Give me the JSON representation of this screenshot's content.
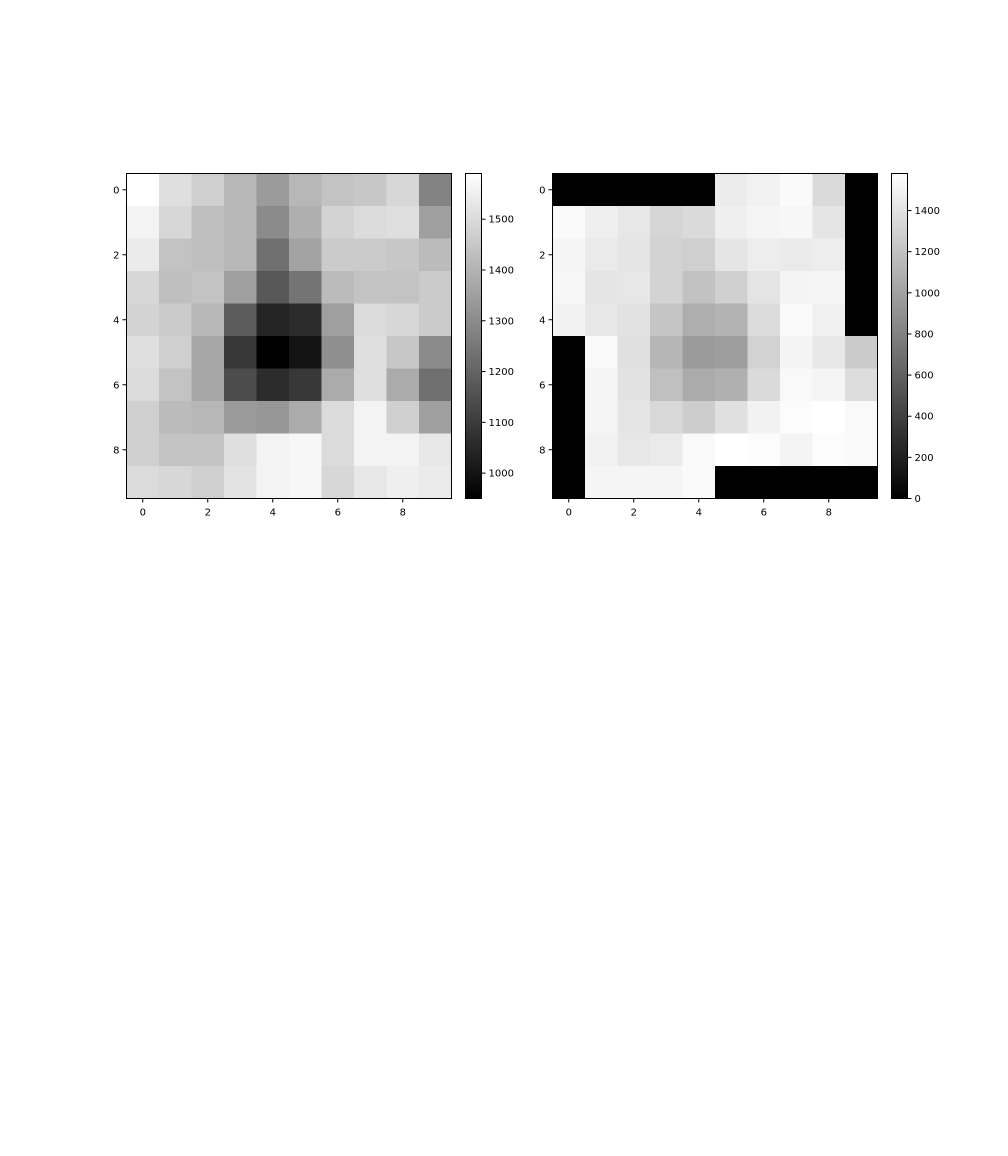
{
  "chart_data": [
    {
      "type": "heatmap",
      "colormap": "gray",
      "x_ticks": [
        "0",
        "2",
        "4",
        "6",
        "8"
      ],
      "y_ticks": [
        "0",
        "2",
        "4",
        "6",
        "8"
      ],
      "colorbar": {
        "range": [
          950,
          1590
        ],
        "ticks": [
          "1000",
          "1100",
          "1200",
          "1300",
          "1400",
          "1500"
        ]
      },
      "values": [
        [
          1590,
          1510,
          1470,
          1410,
          1340,
          1410,
          1440,
          1450,
          1490,
          1280
        ],
        [
          1560,
          1490,
          1430,
          1410,
          1300,
          1390,
          1480,
          1500,
          1510,
          1350
        ],
        [
          1540,
          1440,
          1430,
          1410,
          1230,
          1360,
          1460,
          1460,
          1450,
          1420
        ],
        [
          1490,
          1430,
          1440,
          1350,
          1170,
          1240,
          1420,
          1440,
          1440,
          1460
        ],
        [
          1480,
          1460,
          1410,
          1180,
          1040,
          1060,
          1350,
          1500,
          1490,
          1460
        ],
        [
          1510,
          1470,
          1370,
          1090,
          950,
          1000,
          1310,
          1510,
          1450,
          1300
        ],
        [
          1500,
          1440,
          1370,
          1140,
          1060,
          1090,
          1380,
          1510,
          1380,
          1230
        ],
        [
          1470,
          1420,
          1410,
          1340,
          1330,
          1380,
          1500,
          1560,
          1470,
          1350
        ],
        [
          1470,
          1440,
          1440,
          1510,
          1560,
          1570,
          1500,
          1560,
          1560,
          1530
        ],
        [
          1500,
          1490,
          1470,
          1520,
          1560,
          1570,
          1490,
          1530,
          1550,
          1540
        ]
      ]
    },
    {
      "type": "heatmap",
      "colormap": "gray",
      "x_ticks": [
        "0",
        "2",
        "4",
        "6",
        "8"
      ],
      "y_ticks": [
        "0",
        "2",
        "4",
        "6",
        "8"
      ],
      "colorbar": {
        "range": [
          0,
          1580
        ],
        "ticks": [
          "0",
          "200",
          "400",
          "600",
          "800",
          "1000",
          "1200",
          "1400"
        ]
      },
      "values": [
        [
          0,
          0,
          0,
          0,
          0,
          1460,
          1500,
          1550,
          1350,
          0
        ],
        [
          1550,
          1480,
          1430,
          1320,
          1350,
          1480,
          1520,
          1530,
          1420,
          0
        ],
        [
          1520,
          1450,
          1420,
          1300,
          1280,
          1420,
          1470,
          1450,
          1470,
          0
        ],
        [
          1530,
          1420,
          1430,
          1310,
          1200,
          1290,
          1410,
          1510,
          1520,
          0
        ],
        [
          1500,
          1440,
          1400,
          1220,
          1080,
          1110,
          1360,
          1540,
          1490,
          0
        ],
        [
          0,
          1540,
          1390,
          1130,
          960,
          980,
          1300,
          1510,
          1430,
          1260
        ],
        [
          0,
          1520,
          1400,
          1190,
          1060,
          1090,
          1350,
          1540,
          1520,
          1370
        ],
        [
          0,
          1520,
          1420,
          1340,
          1270,
          1390,
          1500,
          1560,
          1580,
          1540
        ],
        [
          0,
          1500,
          1430,
          1450,
          1540,
          1580,
          1560,
          1510,
          1560,
          1550
        ],
        [
          0,
          1520,
          1520,
          1520,
          1550,
          0,
          0,
          0,
          0,
          0
        ]
      ]
    }
  ]
}
